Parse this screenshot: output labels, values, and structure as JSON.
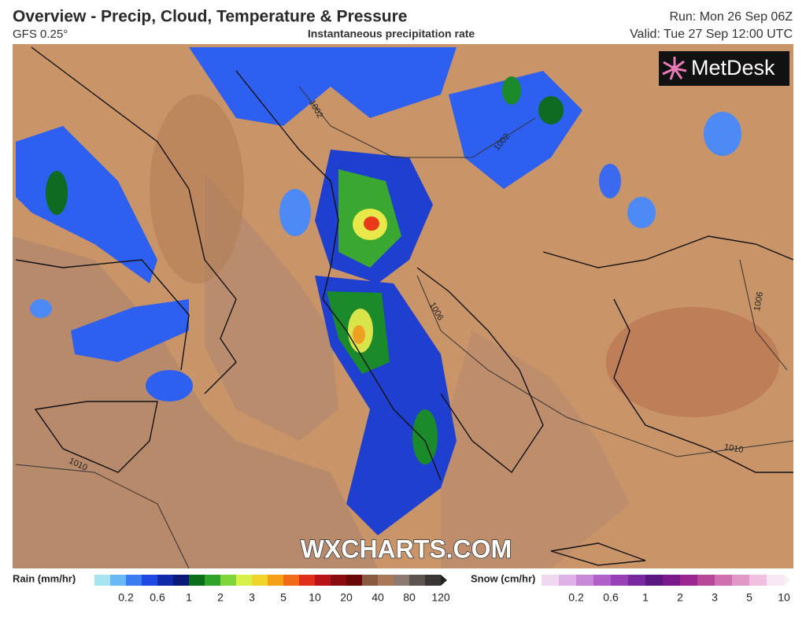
{
  "header": {
    "title": "Overview - Precip, Cloud, Temperature & Pressure",
    "model": "GFS 0.25°",
    "product": "Instantaneous precipitation rate",
    "run": "Run: Mon 26 Sep 06Z",
    "valid": "Valid: Tue 27 Sep 12:00 UTC"
  },
  "logo": "MetDesk",
  "watermark": "WXCHARTS.COM",
  "isobars": [
    "1002",
    "1002",
    "1006",
    "1006",
    "1010",
    "1010"
  ],
  "legend": {
    "rain": {
      "label": "Rain (mm/hr)",
      "ticks": [
        "0.2",
        "0.6",
        "1",
        "2",
        "3",
        "5",
        "10",
        "20",
        "40",
        "80",
        "120"
      ],
      "colors": [
        "#a6e4f0",
        "#6ab8f5",
        "#3b7cf0",
        "#1f49e0",
        "#102aa8",
        "#0b1a78",
        "#0a6e1a",
        "#2fa32a",
        "#7ed63a",
        "#d8f04a",
        "#f0d42a",
        "#f5a018",
        "#f06a18",
        "#e0301a",
        "#b8141a",
        "#8a0c10",
        "#6a0808",
        "#8a5a40",
        "#a87858",
        "#8c7a70",
        "#5c5450",
        "#3a3636"
      ]
    },
    "snow": {
      "label": "Snow (cm/hr)",
      "ticks": [
        "0.2",
        "0.6",
        "1",
        "2",
        "3",
        "5",
        "10"
      ],
      "colors": [
        "#f0d8f0",
        "#e0b0e8",
        "#c888d8",
        "#b060c8",
        "#9840b8",
        "#7828a0",
        "#5a1880",
        "#7a1a8a",
        "#9a2890",
        "#b84898",
        "#d070b0",
        "#e098c8",
        "#f0c0e0",
        "#f8e8f4"
      ]
    }
  }
}
